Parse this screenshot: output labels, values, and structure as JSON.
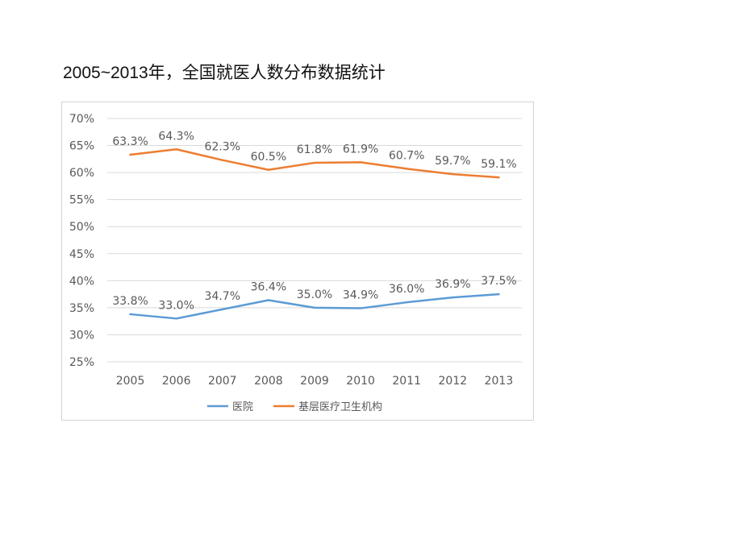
{
  "slide": {
    "title": "2005~2013年，全国就医人数分布数据统计"
  },
  "chart_data": {
    "type": "line",
    "title": "",
    "xlabel": "",
    "ylabel": "",
    "categories": [
      "2005",
      "2006",
      "2007",
      "2008",
      "2009",
      "2010",
      "2011",
      "2012",
      "2013"
    ],
    "y_ticks": [
      "70%",
      "65%",
      "60%",
      "55%",
      "50%",
      "45%",
      "40%",
      "35%",
      "30%",
      "25%"
    ],
    "ylim": [
      25,
      70
    ],
    "grid": true,
    "legend": "bottom",
    "series": [
      {
        "name": "医院",
        "color": "#5b9bd5",
        "values": [
          33.8,
          33.0,
          34.7,
          36.4,
          35.0,
          34.9,
          36.0,
          36.9,
          37.5
        ],
        "labels": [
          "33.8%",
          "33.0%",
          "34.7%",
          "36.4%",
          "35.0%",
          "34.9%",
          "36.0%",
          "36.9%",
          "37.5%"
        ]
      },
      {
        "name": "基层医疗卫生机构",
        "color": "#ed7d31",
        "values": [
          63.3,
          64.3,
          62.3,
          60.5,
          61.8,
          61.9,
          60.7,
          59.7,
          59.1
        ],
        "labels": [
          "63.3%",
          "64.3%",
          "62.3%",
          "60.5%",
          "61.8%",
          "61.9%",
          "60.7%",
          "59.7%",
          "59.1%"
        ]
      }
    ]
  }
}
